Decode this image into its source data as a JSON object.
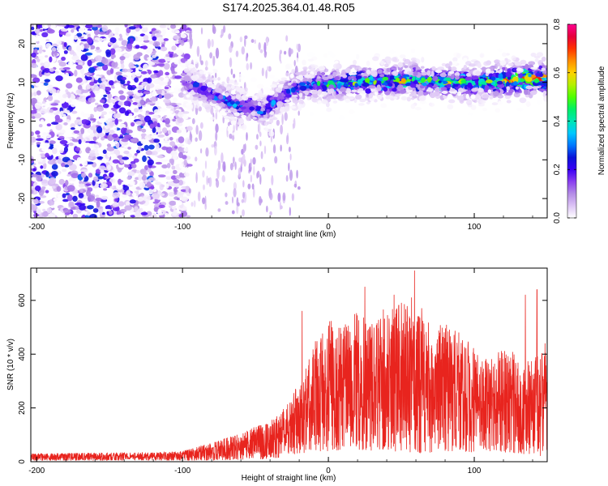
{
  "title": "S174.2025.364.01.48.R05",
  "chart_data": [
    {
      "type": "heatmap",
      "xlabel": "Height of straight line (km)",
      "ylabel": "Frequency (Hz)",
      "xlim": [
        -204,
        150
      ],
      "ylim": [
        -25,
        25
      ],
      "xticks": [
        -200,
        -100,
        0,
        100
      ],
      "yticks": [
        -20,
        -10,
        0,
        10,
        20
      ],
      "colorbar": {
        "label": "Normalized spectral amplitude",
        "range": [
          0.0,
          0.8
        ],
        "ticks": [
          0.0,
          0.2,
          0.4,
          0.6,
          0.8
        ],
        "colors": [
          "#ffffff",
          "#dcc3f5",
          "#b48ce6",
          "#8a3ff0",
          "#3a00f5",
          "#0a14d8",
          "#0078ff",
          "#00c8ff",
          "#00e6b4",
          "#00f064",
          "#50ff00",
          "#b4f000",
          "#ffd200",
          "#ff8c00",
          "#ff3200",
          "#e6003c",
          "#ff0090"
        ]
      },
      "ridge_trace": {
        "x": [
          -100,
          -90,
          -80,
          -70,
          -60,
          -50,
          -45,
          -40,
          -30,
          -20,
          -10,
          0,
          20,
          40,
          60,
          80,
          100,
          120,
          140,
          150
        ],
        "frequency": [
          10,
          9,
          7,
          5,
          4,
          3.5,
          2,
          4,
          7,
          9,
          9.5,
          9.5,
          10,
          10.5,
          10.5,
          10,
          10,
          10.5,
          11,
          11
        ],
        "peak_amplitude": [
          0.2,
          0.25,
          0.3,
          0.35,
          0.3,
          0.3,
          0.25,
          0.3,
          0.3,
          0.35,
          0.35,
          0.45,
          0.5,
          0.5,
          0.55,
          0.55,
          0.5,
          0.7,
          0.75,
          0.75
        ]
      },
      "noise_region": {
        "x_range": [
          -204,
          -95
        ],
        "frequency_range": [
          -25,
          25
        ],
        "typical_amplitude": 0.15
      }
    },
    {
      "type": "line",
      "xlabel": "Height of straight line (km)",
      "ylabel": "SNR (10 * v/v)",
      "xlim": [
        -204,
        150
      ],
      "ylim": [
        0,
        720
      ],
      "xticks": [
        -200,
        -100,
        0,
        100
      ],
      "yticks": [
        0,
        200,
        400,
        600
      ],
      "color": "#e8241e",
      "envelope": {
        "x": [
          -204,
          -120,
          -100,
          -80,
          -60,
          -40,
          -30,
          -20,
          -10,
          0,
          10,
          20,
          30,
          40,
          50,
          60,
          70,
          80,
          90,
          100,
          110,
          120,
          130,
          140,
          150
        ],
        "min": [
          5,
          5,
          5,
          5,
          8,
          10,
          20,
          30,
          40,
          40,
          45,
          45,
          40,
          40,
          35,
          30,
          35,
          40,
          40,
          35,
          40,
          35,
          30,
          25,
          20
        ],
        "max": [
          30,
          35,
          40,
          70,
          110,
          150,
          200,
          300,
          440,
          530,
          500,
          560,
          520,
          580,
          600,
          560,
          520,
          540,
          490,
          420,
          380,
          420,
          400,
          380,
          450
        ]
      },
      "peaks": [
        [
          -18,
          560
        ],
        [
          25,
          650
        ],
        [
          45,
          620
        ],
        [
          57,
          610
        ],
        [
          59,
          710
        ],
        [
          64,
          570
        ],
        [
          135,
          620
        ],
        [
          143,
          640
        ]
      ]
    }
  ]
}
